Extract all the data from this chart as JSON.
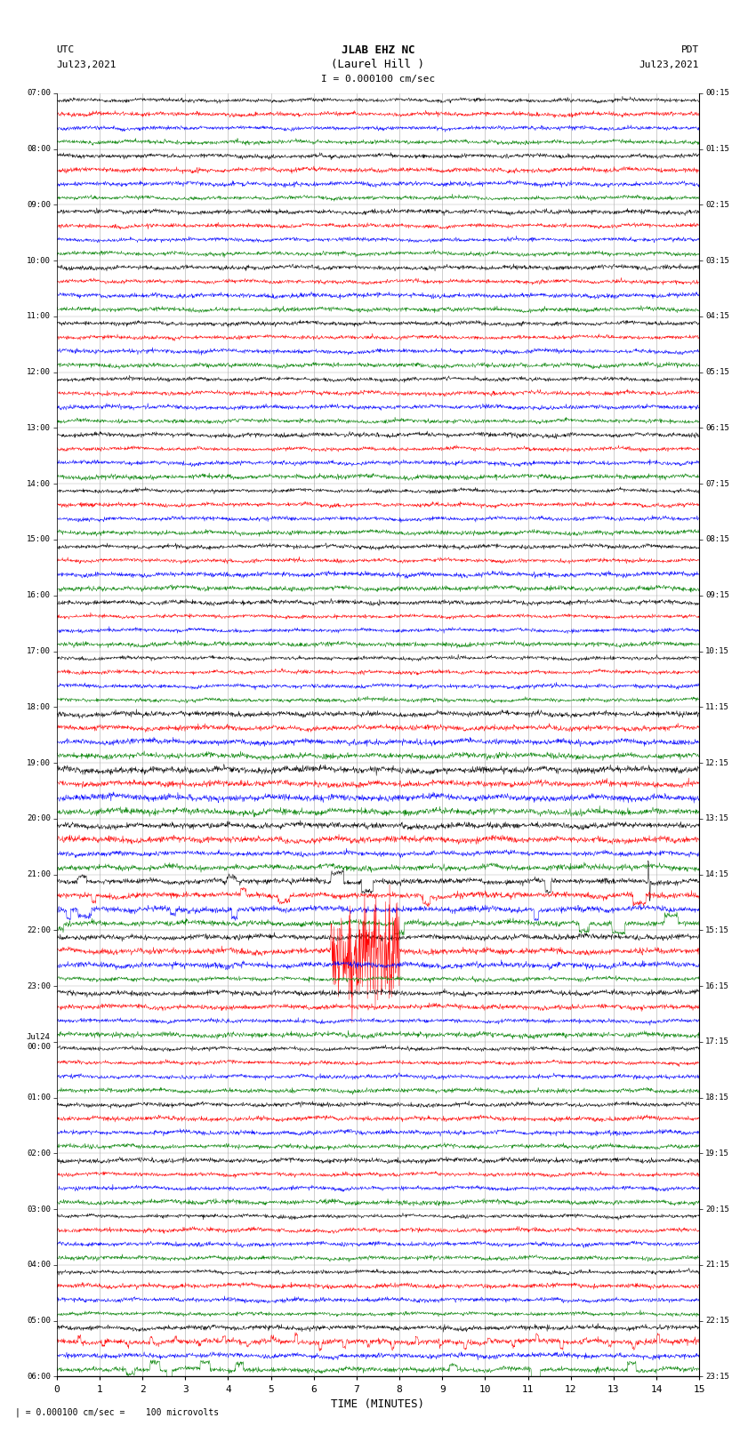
{
  "title_line1": "JLAB EHZ NC",
  "title_line2": "(Laurel Hill )",
  "scale_text": "I = 0.000100 cm/sec",
  "left_label": "UTC",
  "left_date": "Jul23,2021",
  "right_label": "PDT",
  "right_date": "Jul23,2021",
  "xlabel": "TIME (MINUTES)",
  "bottom_note": "| = 0.000100 cm/sec =    100 microvolts",
  "x_min": 0,
  "x_max": 15,
  "x_ticks": [
    0,
    1,
    2,
    3,
    4,
    5,
    6,
    7,
    8,
    9,
    10,
    11,
    12,
    13,
    14,
    15
  ],
  "utc_labels": [
    "07:00",
    "08:00",
    "09:00",
    "10:00",
    "11:00",
    "12:00",
    "13:00",
    "14:00",
    "15:00",
    "16:00",
    "17:00",
    "18:00",
    "19:00",
    "20:00",
    "21:00",
    "22:00",
    "23:00",
    "Jul24\n00:00",
    "01:00",
    "02:00",
    "03:00",
    "04:00",
    "05:00",
    "06:00"
  ],
  "pdt_labels": [
    "00:15",
    "01:15",
    "02:15",
    "03:15",
    "04:15",
    "05:15",
    "06:15",
    "07:15",
    "08:15",
    "09:15",
    "10:15",
    "11:15",
    "12:15",
    "13:15",
    "14:15",
    "15:15",
    "16:15",
    "17:15",
    "18:15",
    "19:15",
    "20:15",
    "21:15",
    "22:15",
    "23:15"
  ],
  "trace_colors": [
    "black",
    "red",
    "blue",
    "green"
  ],
  "n_hours": 23,
  "traces_per_hour": 4,
  "background_color": "white",
  "grid_color": "#888888",
  "figsize": [
    8.5,
    16.13
  ],
  "dpi": 100
}
